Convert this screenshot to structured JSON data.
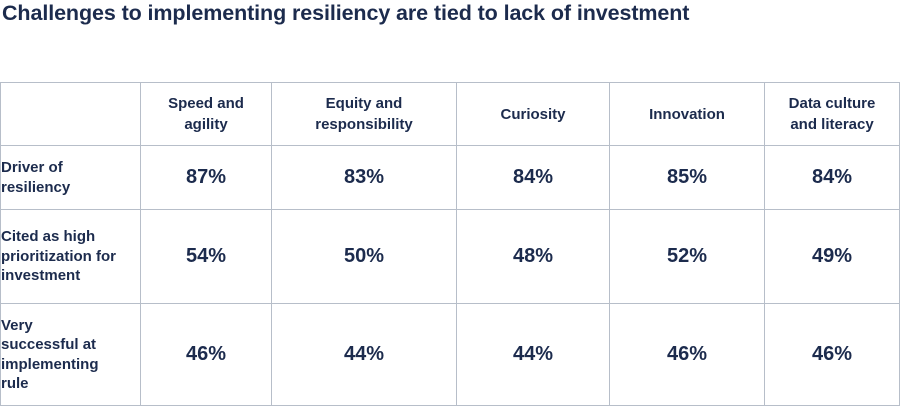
{
  "chart_data": {
    "type": "table",
    "title": "Challenges to implementing resiliency are tied to lack of investment",
    "columns": [
      "Speed and agility",
      "Equity and responsibility",
      "Curiosity",
      "Innovation",
      "Data culture and literacy"
    ],
    "rows": [
      {
        "label": "Driver of resiliency",
        "values": [
          "87%",
          "83%",
          "84%",
          "85%",
          "84%"
        ]
      },
      {
        "label": "Cited as high prioritization for investment",
        "values": [
          "54%",
          "50%",
          "48%",
          "52%",
          "49%"
        ]
      },
      {
        "label": "Very successful at implementing rule",
        "values": [
          "46%",
          "44%",
          "44%",
          "46%",
          "46%"
        ]
      }
    ]
  }
}
